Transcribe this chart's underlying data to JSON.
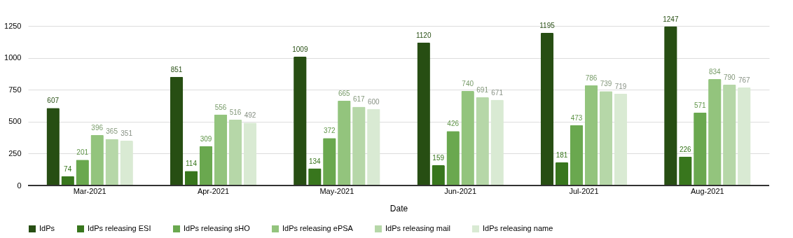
{
  "chart_data": {
    "type": "bar",
    "xlabel": "Date",
    "categories": [
      "Mar-2021",
      "Apr-2021",
      "May-2021",
      "Jun-2021",
      "Jul-2021",
      "Aug-2021"
    ],
    "series": [
      {
        "name": "IdPs",
        "color": "#274e13",
        "values": [
          607,
          851,
          1009,
          1120,
          1195,
          1247
        ]
      },
      {
        "name": "IdPs releasing ESI",
        "color": "#38761d",
        "values": [
          74,
          114,
          134,
          159,
          181,
          226
        ]
      },
      {
        "name": "IdPs releasing sHO",
        "color": "#6aa84f",
        "values": [
          201,
          309,
          372,
          426,
          473,
          571
        ]
      },
      {
        "name": "IdPs releasing ePSA",
        "color": "#93c47d",
        "values": [
          396,
          556,
          665,
          740,
          786,
          834
        ]
      },
      {
        "name": "IdPs releasing mail",
        "color": "#b6d7a8",
        "values": [
          365,
          516,
          617,
          691,
          739,
          790
        ]
      },
      {
        "name": "IdPs releasing name",
        "color": "#d9ead3",
        "values": [
          351,
          492,
          600,
          671,
          719,
          767
        ]
      }
    ],
    "ylim": [
      0,
      1250
    ],
    "yticks": [
      0,
      250,
      500,
      750,
      1000,
      1250
    ],
    "grid": "y",
    "legend": "bottom",
    "data_labels": true
  }
}
